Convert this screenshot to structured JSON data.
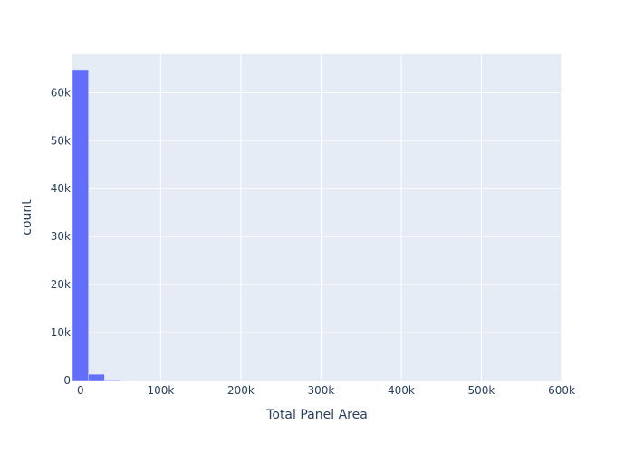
{
  "chart_data": {
    "type": "bar",
    "subtype": "histogram",
    "title": "",
    "xlabel": "Total Panel Area",
    "ylabel": "count",
    "xlim": [
      -10000,
      600000
    ],
    "ylim": [
      0,
      68000
    ],
    "x_ticks": [
      {
        "value": 0,
        "label": "0"
      },
      {
        "value": 100000,
        "label": "100k"
      },
      {
        "value": 200000,
        "label": "200k"
      },
      {
        "value": 300000,
        "label": "300k"
      },
      {
        "value": 400000,
        "label": "400k"
      },
      {
        "value": 500000,
        "label": "500k"
      },
      {
        "value": 600000,
        "label": "600k"
      }
    ],
    "y_ticks": [
      {
        "value": 0,
        "label": "0"
      },
      {
        "value": 10000,
        "label": "10k"
      },
      {
        "value": 20000,
        "label": "20k"
      },
      {
        "value": 30000,
        "label": "30k"
      },
      {
        "value": 40000,
        "label": "40k"
      },
      {
        "value": 50000,
        "label": "50k"
      },
      {
        "value": 60000,
        "label": "60k"
      }
    ],
    "bins": [
      {
        "x0": -10000,
        "x1": 10000,
        "count": 64800
      },
      {
        "x0": 10000,
        "x1": 30000,
        "count": 1300
      },
      {
        "x0": 30000,
        "x1": 50000,
        "count": 150
      }
    ],
    "bar_color": "#636efa",
    "plot_bg": "#e5ecf6",
    "grid": true
  }
}
